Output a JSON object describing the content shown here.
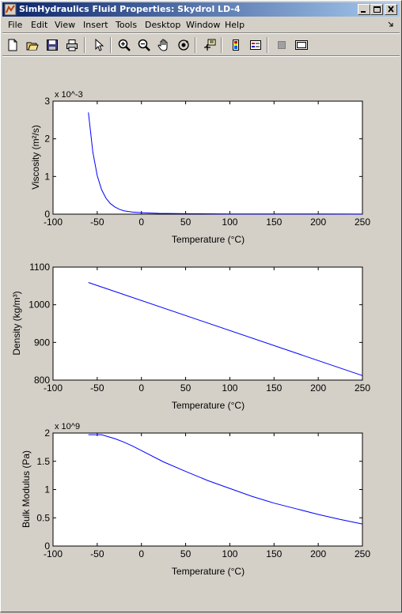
{
  "window": {
    "title": "SimHydraulics Fluid Properties: Skydrol LD-4"
  },
  "menu": [
    "File",
    "Edit",
    "View",
    "Insert",
    "Tools",
    "Desktop",
    "Window",
    "Help"
  ],
  "toolbar": [
    {
      "icon": "new-figure-icon"
    },
    {
      "icon": "open-file-icon"
    },
    {
      "icon": "save-icon"
    },
    {
      "icon": "print-icon"
    },
    {
      "icon": "edit-plot-arrow-icon"
    },
    {
      "icon": "zoom-in-icon"
    },
    {
      "icon": "zoom-out-icon"
    },
    {
      "icon": "pan-hand-icon"
    },
    {
      "icon": "rotate-3d-icon"
    },
    {
      "icon": "data-cursor-icon"
    },
    {
      "icon": "colorbar-icon"
    },
    {
      "icon": "legend-icon"
    },
    {
      "icon": "hide-plot-tools-icon"
    },
    {
      "icon": "show-plot-tools-icon"
    }
  ],
  "chart_data": [
    {
      "type": "line",
      "ylabel": "Viscosity (m²/s)",
      "xlabel": "Temperature (°C)",
      "exponent_label": "x 10^-3",
      "xlim": [
        -100,
        250
      ],
      "ylim": [
        0,
        3
      ],
      "xticks": [
        "-100",
        "-50",
        "0",
        "50",
        "100",
        "150",
        "200",
        "250"
      ],
      "yticks": [
        "0",
        "1",
        "2",
        "3"
      ],
      "series": [
        {
          "color": "#0000ff",
          "x": [
            -60,
            -55,
            -50,
            -45,
            -40,
            -35,
            -30,
            -25,
            -20,
            -10,
            0,
            10,
            20,
            40,
            60,
            100,
            150,
            200,
            250
          ],
          "y": [
            2.7,
            1.65,
            1.02,
            0.65,
            0.42,
            0.28,
            0.19,
            0.13,
            0.09,
            0.055,
            0.04,
            0.03,
            0.022,
            0.015,
            0.011,
            0.007,
            0.005,
            0.004,
            0.003
          ]
        }
      ]
    },
    {
      "type": "line",
      "ylabel": "Density (kg/m³)",
      "xlabel": "Temperature (°C)",
      "xlim": [
        -100,
        250
      ],
      "ylim": [
        800,
        1100
      ],
      "xticks": [
        "-100",
        "-50",
        "0",
        "50",
        "100",
        "150",
        "200",
        "250"
      ],
      "yticks": [
        "800",
        "900",
        "1000",
        "1100"
      ],
      "series": [
        {
          "color": "#0000ff",
          "x": [
            -60,
            250
          ],
          "y": [
            1059,
            812
          ]
        }
      ]
    },
    {
      "type": "line",
      "ylabel": "Bulk Modulus (Pa)",
      "xlabel": "Temperature (°C)",
      "exponent_label": "x 10^9",
      "xlim": [
        -100,
        250
      ],
      "ylim": [
        0,
        2
      ],
      "xticks": [
        "-100",
        "-50",
        "0",
        "50",
        "100",
        "150",
        "200",
        "250"
      ],
      "yticks": [
        "0",
        "0.5",
        "1",
        "1.5",
        "2"
      ],
      "series": [
        {
          "color": "#0000ff",
          "x": [
            -60,
            -45,
            -30,
            -20,
            -10,
            0,
            25,
            50,
            75,
            100,
            125,
            150,
            175,
            200,
            225,
            250
          ],
          "y": [
            1.97,
            1.97,
            1.9,
            1.84,
            1.77,
            1.69,
            1.49,
            1.32,
            1.16,
            1.02,
            0.88,
            0.76,
            0.66,
            0.56,
            0.47,
            0.39
          ]
        }
      ]
    }
  ]
}
